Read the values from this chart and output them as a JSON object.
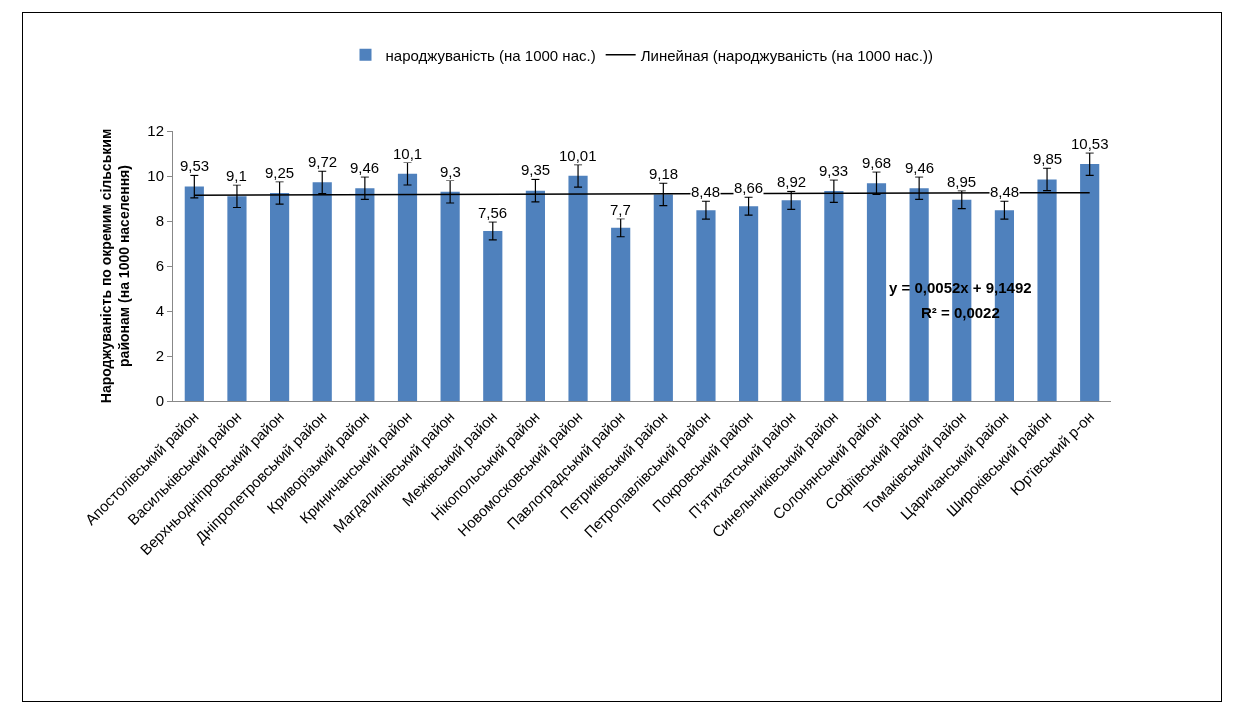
{
  "chart_data": {
    "type": "bar",
    "ylabel": "Народжуваність по окремим сільським районам (на 1000 населення)",
    "categories": [
      "Апостолівський район",
      "Васильківський район",
      "Верхньодніпровський район",
      "Дніпропетровський район",
      "Криворізький район",
      "Криничанський район",
      "Магдалинівський район",
      "Межівський район",
      "Нікопольський район",
      "Новомосковський район",
      "Павлоградський район",
      "Петриківський район",
      "Петропавлівський район",
      "Покровський район",
      "П'ятихатський район",
      "Синельниківський район",
      "Солонянський район",
      "Софіївський район",
      "Томаківський район",
      "Царичанський район",
      "Широківський район",
      "Юр'ївський р-он"
    ],
    "series": [
      {
        "name": "народжуваність (на 1000 нас.)",
        "color": "#4f81bd",
        "values": [
          9.53,
          9.1,
          9.25,
          9.72,
          9.46,
          10.1,
          9.3,
          7.56,
          9.35,
          10.01,
          7.7,
          9.18,
          8.48,
          8.66,
          8.92,
          9.33,
          9.68,
          9.46,
          8.95,
          8.48,
          9.85,
          10.53
        ],
        "value_labels": [
          "9,53",
          "9,1",
          "9,25",
          "9,72",
          "9,46",
          "10,1",
          "9,3",
          "7,56",
          "9,35",
          "10,01",
          "7,7",
          "9,18",
          "8,48",
          "8,66",
          "8,92",
          "9,33",
          "9,68",
          "9,46",
          "8,95",
          "8,48",
          "9,85",
          "10,53"
        ],
        "errors": [
          0.5,
          0.5,
          0.5,
          0.5,
          0.5,
          0.5,
          0.5,
          0.4,
          0.5,
          0.5,
          0.4,
          0.5,
          0.4,
          0.4,
          0.4,
          0.5,
          0.5,
          0.5,
          0.4,
          0.4,
          0.5,
          0.5
        ]
      },
      {
        "name": "Линейная (народжуваність (на 1000 нас.))",
        "type": "line",
        "color": "#000000",
        "x": [
          "Апостолівський район",
          "Юр'ївський р-он"
        ],
        "values": [
          9.15,
          9.26
        ]
      }
    ],
    "ylim": [
      0,
      12
    ],
    "yticks": [
      0,
      2,
      4,
      6,
      8,
      10,
      12
    ],
    "grid": false,
    "legend": "top",
    "annotations": [
      "y = 0,0052x + 9,1492",
      "R² = 0,0022"
    ]
  }
}
